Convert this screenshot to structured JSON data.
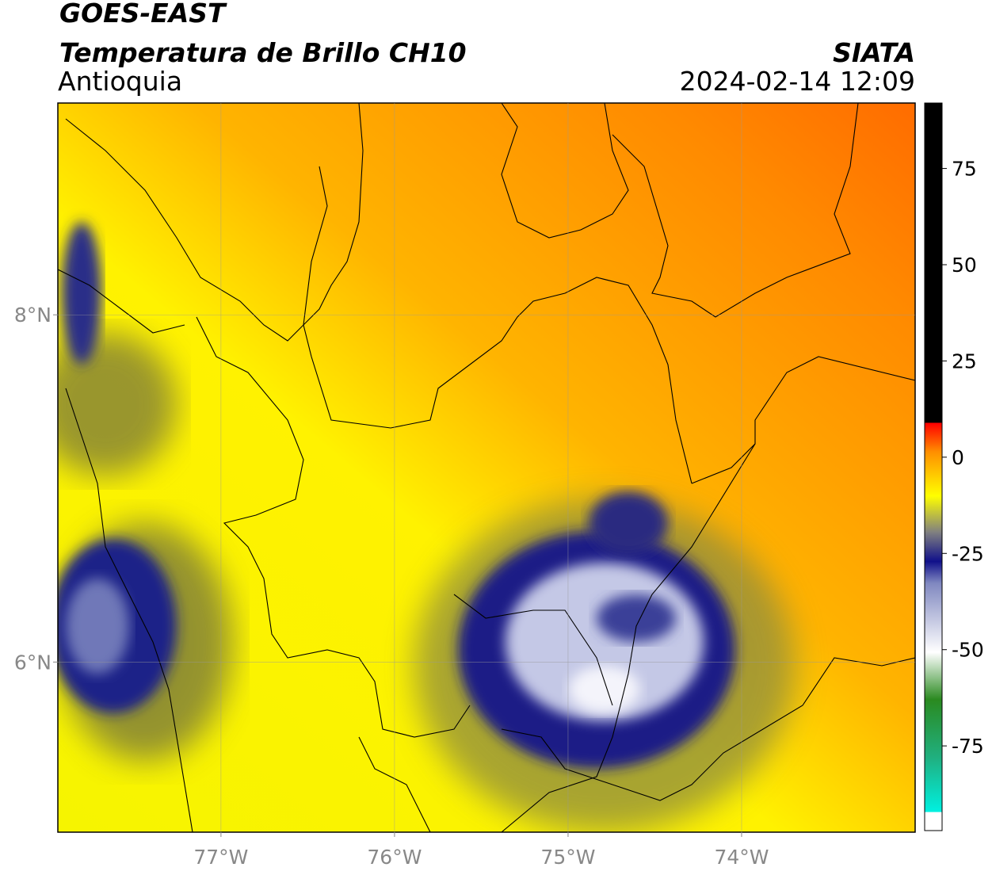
{
  "header": {
    "title": "GOES-EAST",
    "subtitle": "Temperatura de Brillo CH10",
    "region": "Antioquia",
    "source": "SIATA",
    "datetime": "2024-02-14 12:09"
  },
  "map": {
    "lon_lim": [
      -77.94,
      -73.0
    ],
    "lat_lim": [
      5.02,
      9.22
    ],
    "grid": true,
    "lon_ticks": [
      {
        "value": -77,
        "label": "77°W"
      },
      {
        "value": -76,
        "label": "76°W"
      },
      {
        "value": -75,
        "label": "75°W"
      },
      {
        "value": -74,
        "label": "74°W"
      }
    ],
    "lat_ticks": [
      {
        "value": 8,
        "label": "8°N"
      },
      {
        "value": 6,
        "label": "6°N"
      }
    ]
  },
  "colorbar": {
    "lim": [
      -97,
      92
    ],
    "ticks": [
      75,
      50,
      25,
      0,
      -25,
      -50,
      -75
    ]
  }
}
